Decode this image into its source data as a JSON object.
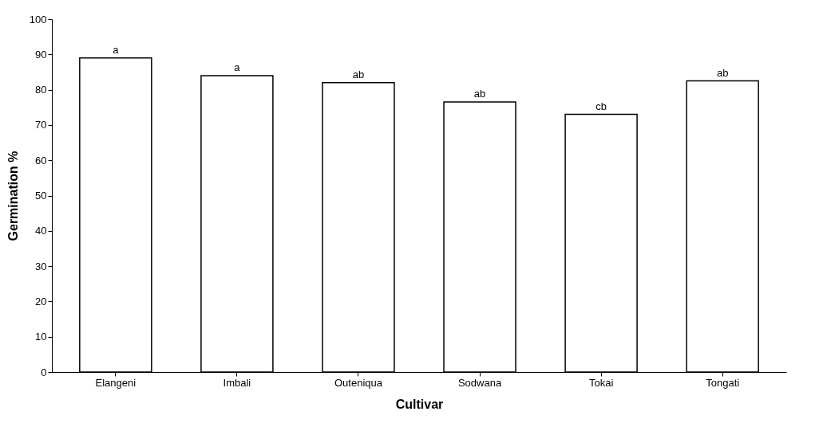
{
  "chart_data": {
    "type": "bar",
    "xlabel": "Cultivar",
    "ylabel": "Germination %",
    "categories": [
      "Elangeni",
      "Imbali",
      "Outeniqua",
      "Sodwana",
      "Tokai",
      "Tongati"
    ],
    "values": [
      89,
      84,
      82,
      76.5,
      73,
      82.5
    ],
    "color": "#ffffff",
    "ylim": [
      0,
      100
    ],
    "yticks": [
      0,
      10,
      20,
      30,
      40,
      50,
      60,
      70,
      80,
      90,
      100
    ],
    "grid": false,
    "annotations": [
      {
        "text": "a",
        "x": "Elangeni",
        "y": 89
      },
      {
        "text": "a",
        "x": "Imbali",
        "y": 84
      },
      {
        "text": "ab",
        "x": "Outeniqua",
        "y": 82
      },
      {
        "text": "ab",
        "x": "Sodwana",
        "y": 76.5
      },
      {
        "text": "cb",
        "x": "Tokai",
        "y": 73
      },
      {
        "text": "ab",
        "x": "Tongati",
        "y": 82.5
      }
    ]
  }
}
